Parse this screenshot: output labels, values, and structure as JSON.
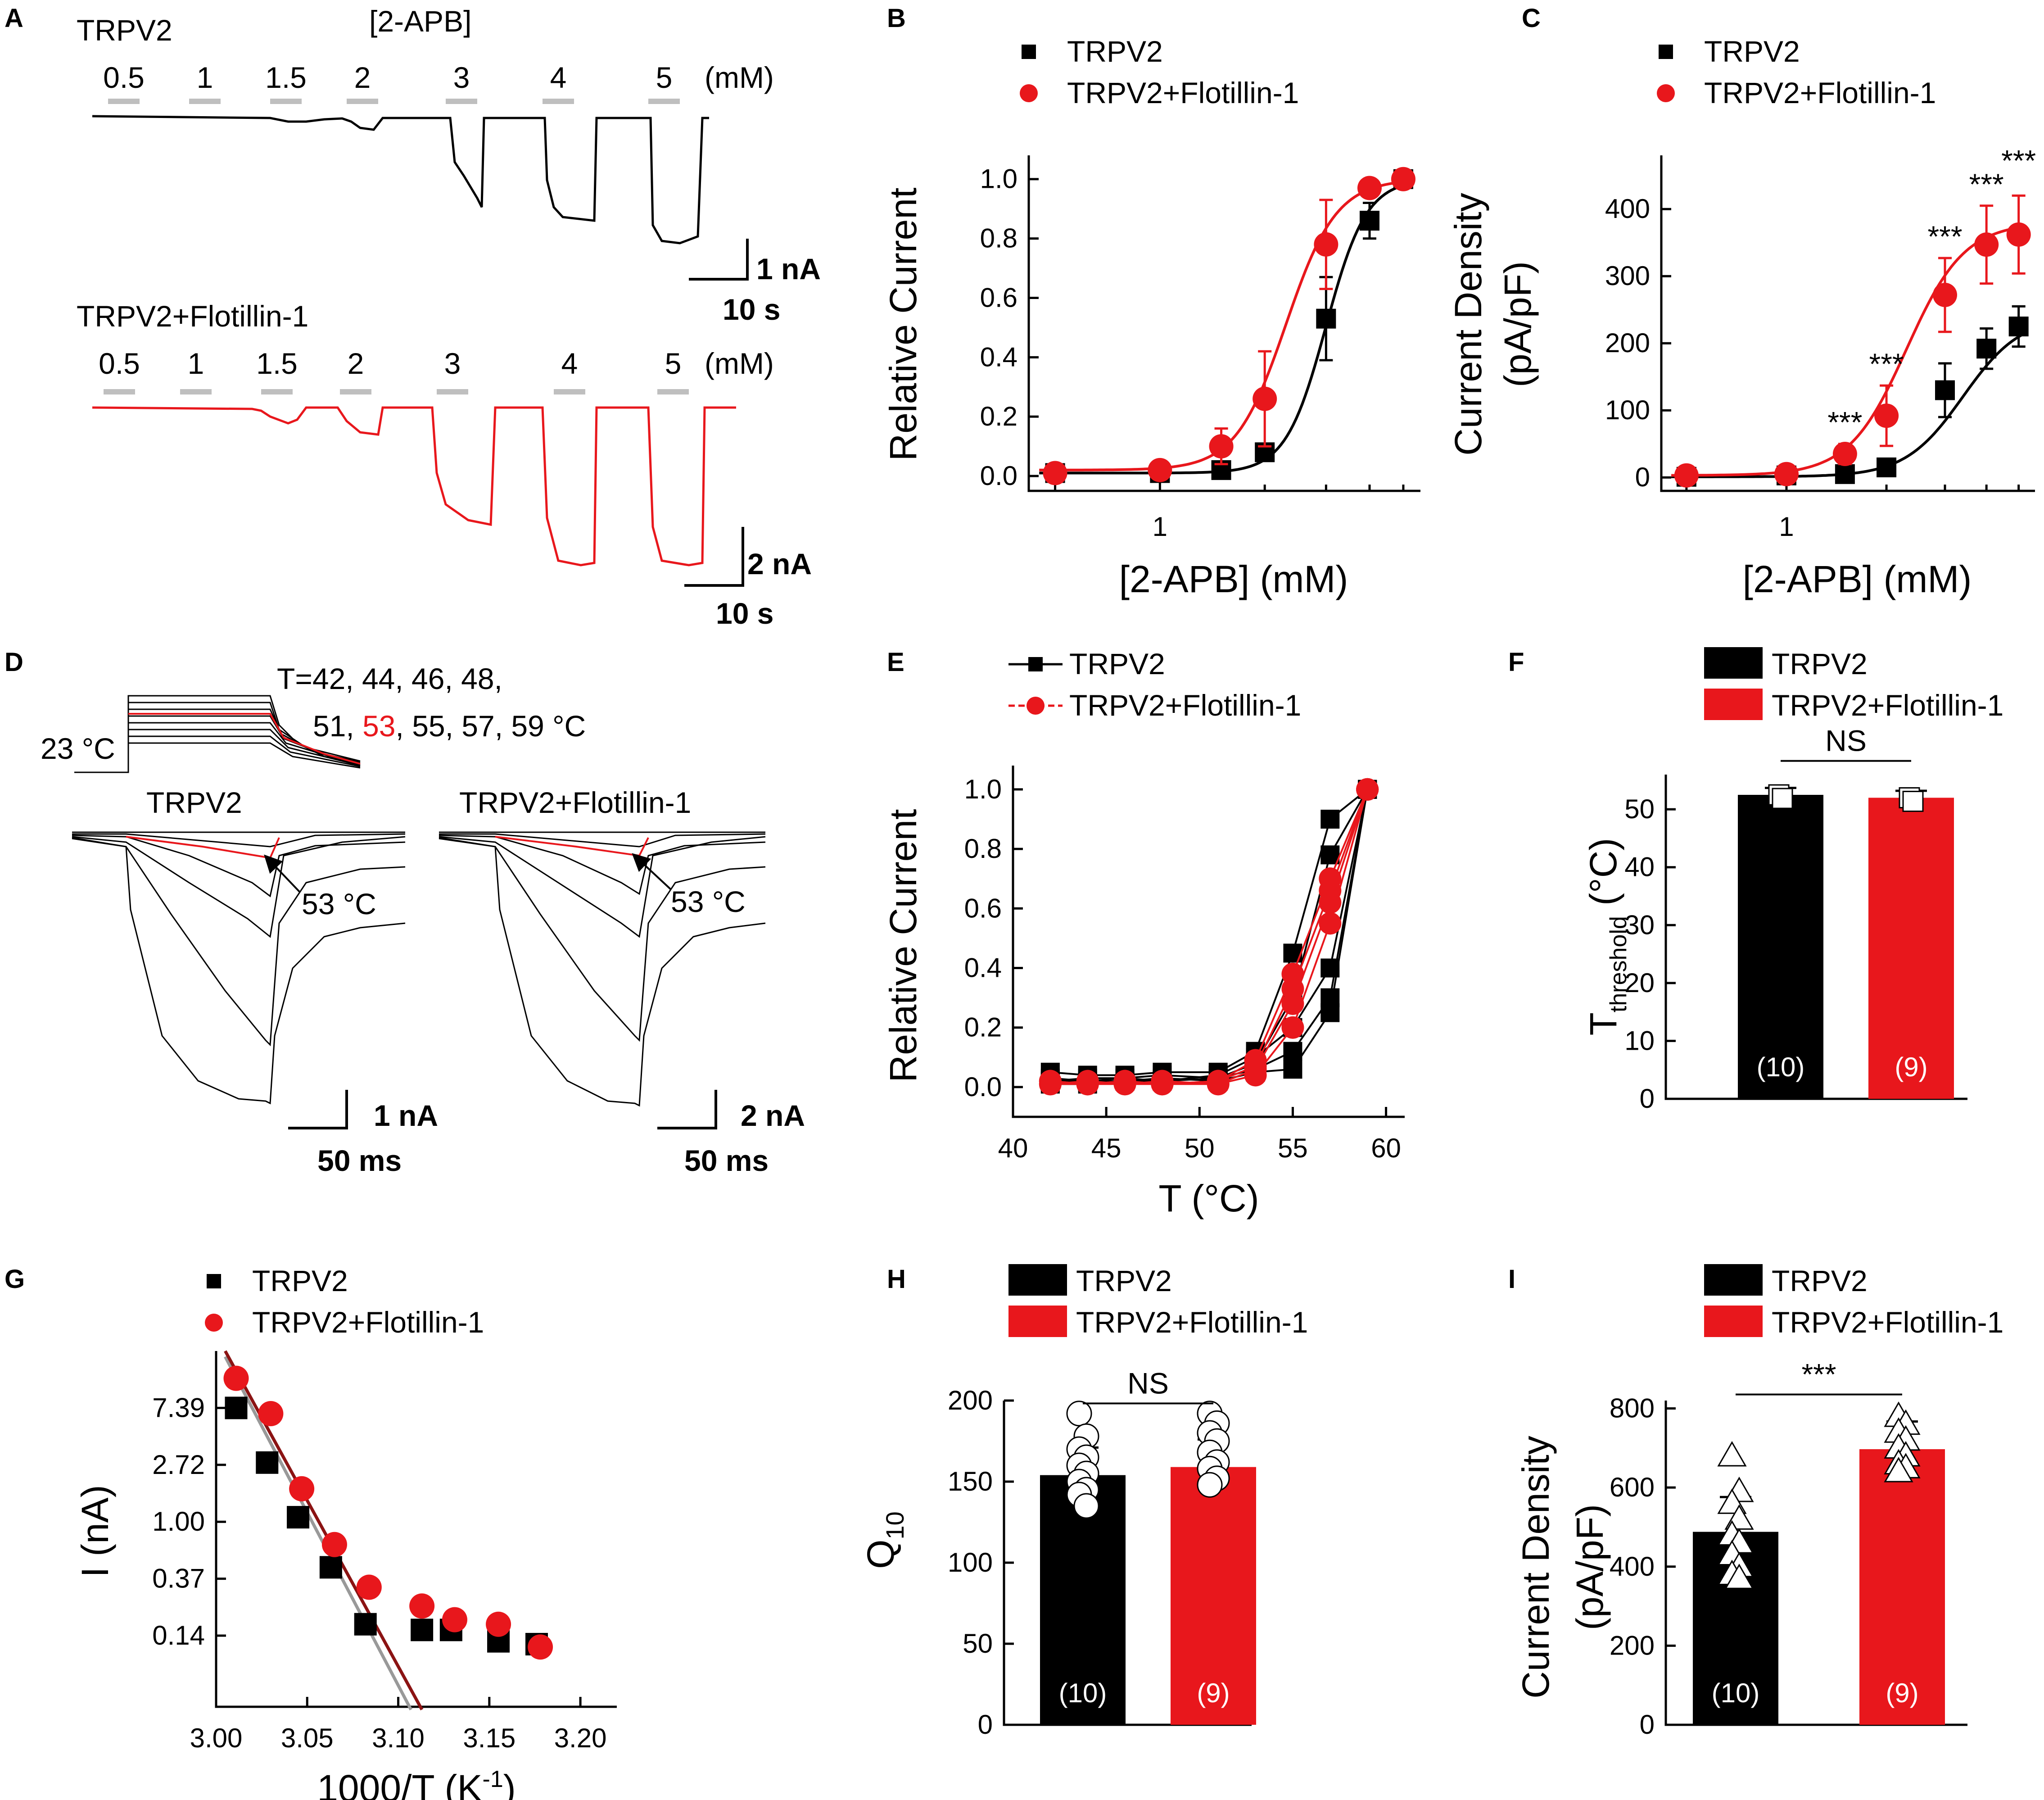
{
  "panel_letters": [
    "A",
    "B",
    "C",
    "D",
    "E",
    "F",
    "G",
    "H",
    "I"
  ],
  "colors": {
    "trpv2": "#000000",
    "flot": "#e8171c",
    "gray_bar": "#bfbfbf",
    "fit_gray": "#999999",
    "fit_darkred": "#8b1313"
  },
  "panelA": {
    "label_trpv2": "TRPV2",
    "label_flot": "TRPV2+Flotillin-1",
    "agonist": "[2-APB]",
    "unit": "(mM)",
    "concs": [
      "0.5",
      "1",
      "1.5",
      "2",
      "3",
      "4",
      "5"
    ],
    "scale_top_amp": "1 nA",
    "scale_top_time": "10 s",
    "scale_bottom_amp": "2 nA",
    "scale_bottom_time": "10 s"
  },
  "panelD": {
    "temps_line1": "T=42, 44, 46, 48,",
    "temps_line2_a": "51, ",
    "temps_line2_red": "53",
    "temps_line2_b": ", 55, 57, 59 °C",
    "base_temp": "23 °C",
    "label_trpv2": "TRPV2",
    "label_flot": "TRPV2+Flotillin-1",
    "arrow_label": "53 °C",
    "scale_left_amp": "1 nA",
    "scale_left_time": "50 ms",
    "scale_right_amp": "2 nA",
    "scale_right_time": "50 ms"
  },
  "chart_data": [
    {
      "id": "B",
      "type": "scatter",
      "xscale": "log",
      "xlabel": "[2-APB] (mM)",
      "ylabel": "Relative Current",
      "ylim": [
        -0.05,
        1.08
      ],
      "yticks": [
        "0.0",
        "0.2",
        "0.4",
        "0.6",
        "0.8",
        "1.0"
      ],
      "xtick_label": "1",
      "legend": [
        "TRPV2",
        "TRPV2+Flotillin-1"
      ],
      "series": [
        {
          "name": "TRPV2",
          "x": [
            0.5,
            1,
            1.5,
            2,
            3,
            4,
            5
          ],
          "y": [
            0.01,
            0.01,
            0.02,
            0.08,
            0.53,
            0.86,
            1.0
          ],
          "err": [
            0,
            0,
            0.02,
            0.02,
            0.14,
            0.06,
            0
          ]
        },
        {
          "name": "TRPV2+Flotillin-1",
          "x": [
            0.5,
            1,
            1.5,
            2,
            3,
            4,
            5
          ],
          "y": [
            0.01,
            0.02,
            0.1,
            0.26,
            0.78,
            0.97,
            1.0
          ],
          "err": [
            0,
            0,
            0.06,
            0.16,
            0.15,
            0.02,
            0
          ]
        }
      ]
    },
    {
      "id": "C",
      "type": "scatter",
      "xscale": "log",
      "xlabel": "[2-APB] (mM)",
      "ylabel": "Current Density",
      "ylabel2": "(pA/pF)",
      "ylim": [
        -20,
        480
      ],
      "yticks": [
        "0",
        "100",
        "200",
        "300",
        "400"
      ],
      "xtick_label": "1",
      "legend": [
        "TRPV2",
        "TRPV2+Flotillin-1"
      ],
      "significance": "***",
      "series": [
        {
          "name": "TRPV2",
          "x": [
            0.5,
            1,
            1.5,
            2,
            3,
            4,
            5
          ],
          "y": [
            1,
            3,
            5,
            15,
            130,
            192,
            225
          ],
          "err": [
            0,
            0,
            0,
            5,
            40,
            30,
            30
          ]
        },
        {
          "name": "TRPV2+Flotillin-1",
          "x": [
            0.5,
            1,
            1.5,
            2,
            3,
            4,
            5
          ],
          "y": [
            3,
            5,
            35,
            92,
            272,
            347,
            362
          ],
          "err": [
            0,
            0,
            15,
            45,
            55,
            58,
            58
          ]
        }
      ]
    },
    {
      "id": "E",
      "type": "line",
      "xlabel": "T (°C)",
      "ylabel": "Relative Current",
      "xlim": [
        40,
        61
      ],
      "ylim": [
        -0.1,
        1.08
      ],
      "xticks": [
        "40",
        "45",
        "50",
        "55",
        "60"
      ],
      "yticks": [
        "0.0",
        "0.2",
        "0.4",
        "0.6",
        "0.8",
        "1.0"
      ],
      "legend": [
        "TRPV2",
        "TRPV2+Flotillin-1"
      ],
      "series": [
        {
          "name": "TRPV2",
          "x": [
            42,
            44,
            46,
            48,
            51,
            53,
            55,
            57,
            59
          ],
          "curves": [
            [
              0.05,
              0.04,
              0.04,
              0.05,
              0.05,
              0.12,
              0.45,
              0.9,
              1.0
            ],
            [
              0.03,
              0.02,
              0.03,
              0.04,
              0.03,
              0.08,
              0.3,
              0.78,
              1.0
            ],
            [
              0.02,
              0.02,
              0.02,
              0.03,
              0.02,
              0.05,
              0.06,
              0.25,
              1.0
            ],
            [
              0.01,
              0.01,
              0.02,
              0.02,
              0.04,
              0.1,
              0.2,
              0.4,
              1.0
            ],
            [
              0.02,
              0.03,
              0.03,
              0.02,
              0.03,
              0.06,
              0.12,
              0.3,
              1.0
            ]
          ]
        },
        {
          "name": "TRPV2+Flotillin-1",
          "x": [
            42,
            44,
            46,
            48,
            51,
            53,
            55,
            57,
            59
          ],
          "curves": [
            [
              0.02,
              0.01,
              0.02,
              0.01,
              0.02,
              0.09,
              0.38,
              0.7,
              1.0
            ],
            [
              0.01,
              0.01,
              0.01,
              0.01,
              0.01,
              0.06,
              0.28,
              0.62,
              1.0
            ],
            [
              0.01,
              0.02,
              0.01,
              0.02,
              0.01,
              0.04,
              0.2,
              0.55,
              1.0
            ],
            [
              0.02,
              0.01,
              0.02,
              0.01,
              0.02,
              0.07,
              0.33,
              0.66,
              1.0
            ]
          ]
        }
      ]
    },
    {
      "id": "F",
      "type": "bar",
      "categories": [
        "TRPV2",
        "TRPV2+Flotillin-1"
      ],
      "values": [
        52.5,
        52.0
      ],
      "err": [
        1.2,
        1.2
      ],
      "ylabel": "T",
      "ylabel_sub": "threshold",
      "ylabel_unit": " (°C)",
      "ylim": [
        0,
        56
      ],
      "yticks": [
        "0",
        "10",
        "20",
        "30",
        "40",
        "50"
      ],
      "n_labels": [
        "(10)",
        "(9)"
      ],
      "significance": "NS",
      "legend": [
        "TRPV2",
        "TRPV2+Flotillin-1"
      ]
    },
    {
      "id": "G",
      "type": "scatter",
      "xlabel": "1000/T (K",
      "xlabel_sup": "-1",
      "xlabel_end": ")",
      "ylabel": "I (nA)",
      "xlim": [
        3.0,
        3.22
      ],
      "xticks": [
        "3.00",
        "3.05",
        "3.10",
        "3.15",
        "3.20"
      ],
      "yticks": [
        "0.14",
        "0.37",
        "1.00",
        "2.72",
        "7.39"
      ],
      "ylim_ln": [
        -3.25,
        3.0
      ],
      "legend": [
        "TRPV2",
        "TRPV2+Flotillin-1"
      ],
      "series": [
        {
          "name": "TRPV2",
          "x": [
            3.011,
            3.028,
            3.045,
            3.063,
            3.082,
            3.113,
            3.129,
            3.155,
            3.176
          ],
          "lnI": [
            2.0,
            1.04,
            0.08,
            -0.8,
            -1.8,
            -1.9,
            -1.9,
            -2.1,
            -2.15
          ]
        },
        {
          "name": "TRPV2+Flotillin-1",
          "x": [
            3.011,
            3.03,
            3.047,
            3.065,
            3.084,
            3.113,
            3.131,
            3.155,
            3.178
          ],
          "lnI": [
            2.52,
            1.9,
            0.58,
            -0.4,
            -1.15,
            -1.48,
            -1.72,
            -1.8,
            -2.2
          ]
        }
      ],
      "fit_lines": [
        {
          "name": "TRPV2",
          "x": [
            3.005,
            3.107
          ],
          "lnI": [
            2.9,
            -3.3
          ]
        },
        {
          "name": "TRPV2+Flotillin-1",
          "x": [
            3.005,
            3.113
          ],
          "lnI": [
            3.0,
            -3.3
          ]
        }
      ]
    },
    {
      "id": "H",
      "type": "bar",
      "categories": [
        "TRPV2",
        "TRPV2+Flotillin-1"
      ],
      "values": [
        154,
        159
      ],
      "err": [
        17,
        17
      ],
      "ylabel": "Q",
      "ylabel_sub": "10",
      "ylim": [
        0,
        200
      ],
      "yticks": [
        "0",
        "50",
        "100",
        "150",
        "200"
      ],
      "n_labels": [
        "(10)",
        "(9)"
      ],
      "significance": "NS",
      "legend": [
        "TRPV2",
        "TRPV2+Flotillin-1"
      ],
      "points": [
        [
          192,
          178,
          170,
          165,
          160,
          155,
          150,
          145,
          142,
          135
        ],
        [
          192,
          186,
          180,
          175,
          168,
          162,
          158,
          152,
          148
        ]
      ]
    },
    {
      "id": "I",
      "type": "bar",
      "categories": [
        "TRPV2",
        "TRPV2+Flotillin-1"
      ],
      "values": [
        488,
        697
      ],
      "err": [
        88,
        70
      ],
      "ylabel": "Current Density",
      "ylabel2": "(pA/pF)",
      "ylim": [
        0,
        820
      ],
      "yticks": [
        "0",
        "200",
        "400",
        "600",
        "800"
      ],
      "n_labels": [
        "(10)",
        "(9)"
      ],
      "significance": "***",
      "legend": [
        "TRPV2",
        "TRPV2+Flotillin-1"
      ],
      "points": [
        [
          680,
          590,
          560,
          520,
          480,
          460,
          430,
          400,
          380,
          370
        ],
        [
          780,
          760,
          740,
          720,
          700,
          680,
          660,
          650,
          640
        ]
      ]
    }
  ]
}
